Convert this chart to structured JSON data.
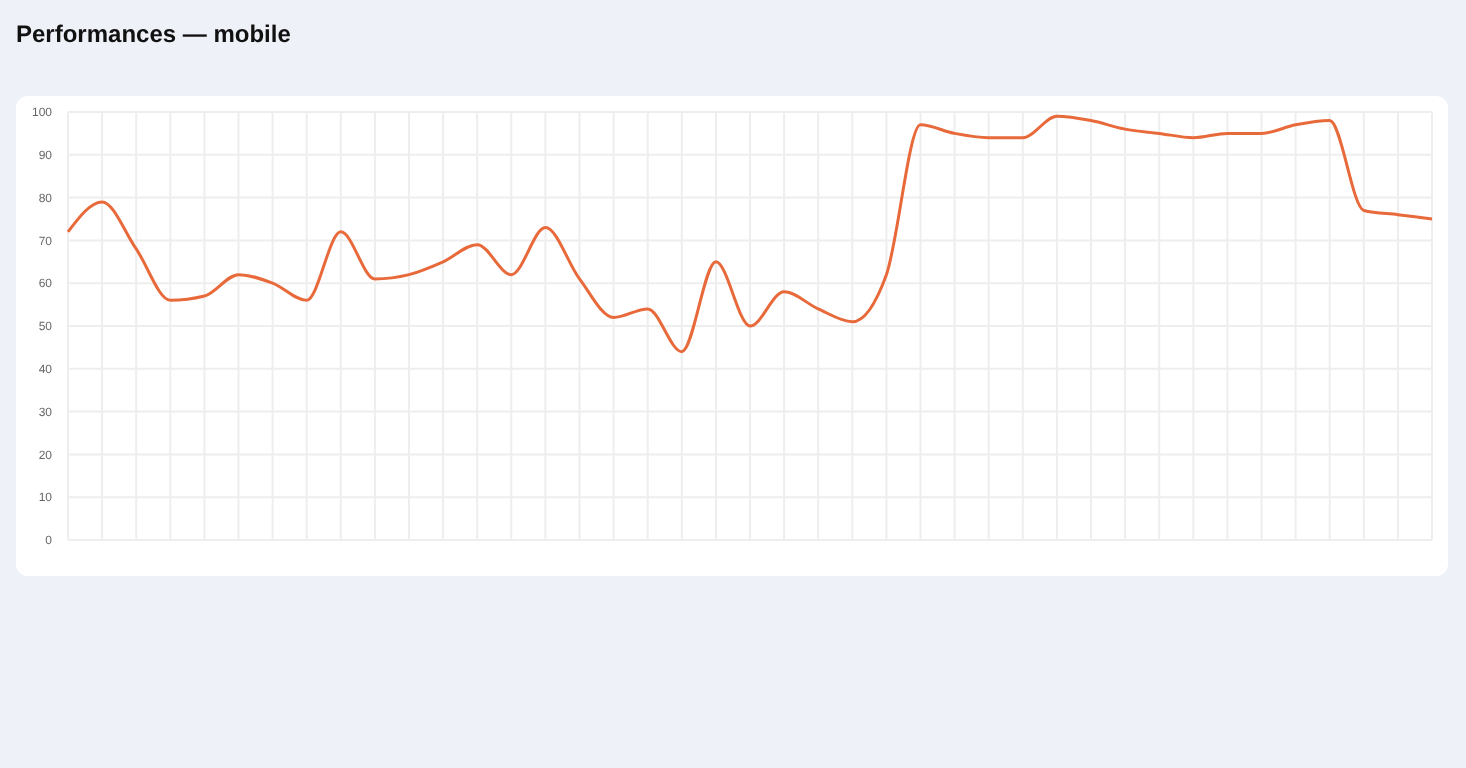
{
  "chart_data": {
    "type": "line",
    "title": "Performances — mobile",
    "categories": [
      null,
      null,
      null,
      null,
      null,
      null,
      null,
      null,
      null,
      null,
      null,
      null,
      null,
      null,
      null,
      null,
      null,
      null,
      null,
      null,
      null,
      null,
      null,
      null,
      null,
      null,
      null,
      null,
      null,
      null,
      null,
      null,
      null,
      null,
      null,
      null,
      null,
      null,
      null,
      null,
      null
    ],
    "series": [
      {
        "color": "#e8693a",
        "values": [
          72,
          79,
          68,
          56,
          57,
          62,
          60,
          56,
          72,
          61,
          62,
          65,
          69,
          62,
          73,
          61,
          52,
          54,
          44,
          65,
          50,
          58,
          54,
          51,
          62,
          97,
          95,
          94,
          94,
          99,
          98,
          96,
          95,
          94,
          95,
          95,
          97,
          98,
          77,
          76,
          75
        ]
      }
    ],
    "ylim": [
      0,
      100
    ],
    "yticks": [
      0,
      10,
      20,
      30,
      40,
      50,
      60,
      70,
      80,
      90,
      100
    ],
    "grid": true,
    "marker": "none",
    "line_style": "solid",
    "legend": false
  }
}
